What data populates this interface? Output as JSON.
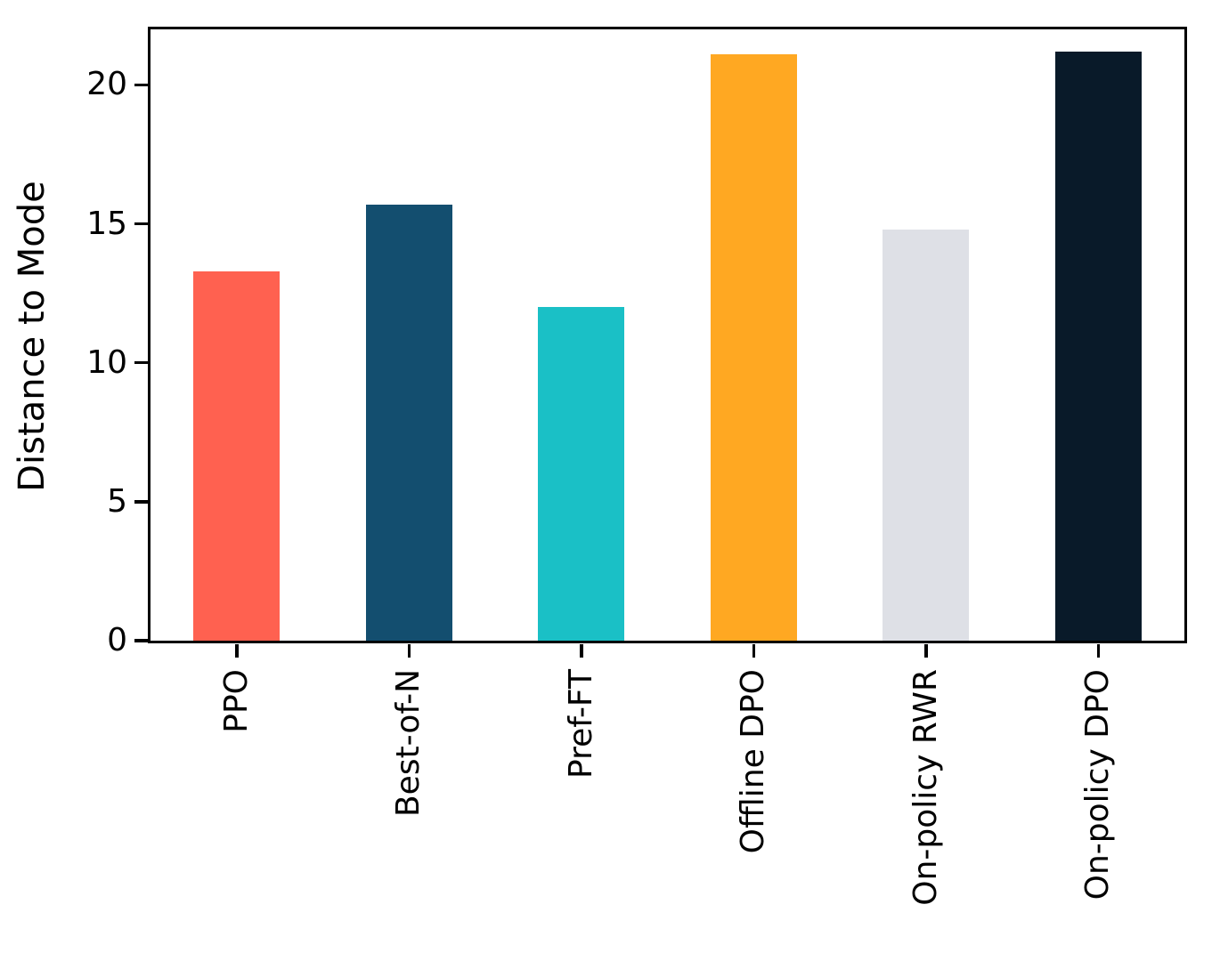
{
  "chart_data": {
    "type": "bar",
    "categories": [
      "PPO",
      "Best-of-N",
      "Pref-FT",
      "Offline DPO",
      "On-policy RWR",
      "On-policy DPO"
    ],
    "values": [
      13.3,
      15.7,
      12.0,
      21.1,
      14.8,
      21.2
    ],
    "bar_colors": [
      "#FF6150",
      "#134E6F",
      "#1AC0C6",
      "#FFA822",
      "#DEE0E6",
      "#091A29"
    ],
    "title": "",
    "xlabel": "",
    "ylabel": "Distance to Mode",
    "ylim": [
      0,
      22
    ],
    "yticks": [
      0,
      5,
      10,
      15,
      20
    ],
    "grid": false,
    "legend": "none",
    "bar_width_fraction": 0.5
  },
  "colors": {
    "axis": "#000000",
    "text": "#000000",
    "background": "#ffffff"
  }
}
